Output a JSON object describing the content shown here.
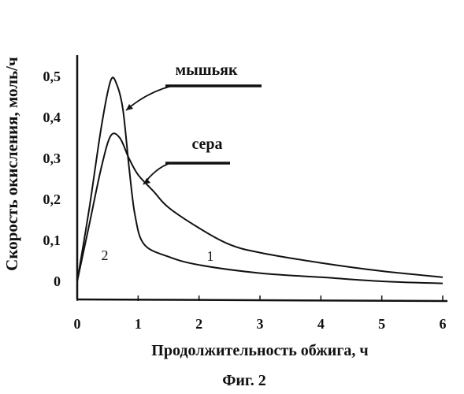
{
  "chart_data": {
    "type": "line",
    "ylabel": "Скорость окисления, моль/ч",
    "xlabel": "Продолжительность обжига, ч",
    "caption": "Фиг. 2",
    "xlim": [
      0,
      6
    ],
    "ylim": [
      0,
      0.5
    ],
    "xticks": [
      "0",
      "1",
      "2",
      "3",
      "4",
      "5",
      "6"
    ],
    "yticks": [
      "0",
      "0,1",
      "0,2",
      "0,3",
      "0,4",
      "0,5"
    ],
    "series": [
      {
        "name": "мышьяк",
        "curve_number": "2",
        "points": [
          [
            0,
            0.0
          ],
          [
            0.2,
            0.18
          ],
          [
            0.4,
            0.38
          ],
          [
            0.55,
            0.49
          ],
          [
            0.65,
            0.48
          ],
          [
            0.75,
            0.42
          ],
          [
            0.85,
            0.28
          ],
          [
            0.95,
            0.16
          ],
          [
            1.1,
            0.09
          ],
          [
            1.5,
            0.06
          ],
          [
            2,
            0.04
          ],
          [
            3,
            0.02
          ],
          [
            4,
            0.01
          ],
          [
            5,
            0.0
          ],
          [
            6,
            -0.005
          ]
        ]
      },
      {
        "name": "сера",
        "curve_number": "1",
        "points": [
          [
            0,
            0.0
          ],
          [
            0.2,
            0.14
          ],
          [
            0.4,
            0.28
          ],
          [
            0.55,
            0.355
          ],
          [
            0.7,
            0.35
          ],
          [
            0.85,
            0.3
          ],
          [
            1,
            0.26
          ],
          [
            1.25,
            0.22
          ],
          [
            1.5,
            0.18
          ],
          [
            2,
            0.13
          ],
          [
            2.5,
            0.09
          ],
          [
            3,
            0.07
          ],
          [
            4,
            0.045
          ],
          [
            5,
            0.025
          ],
          [
            6,
            0.01
          ]
        ]
      }
    ]
  }
}
